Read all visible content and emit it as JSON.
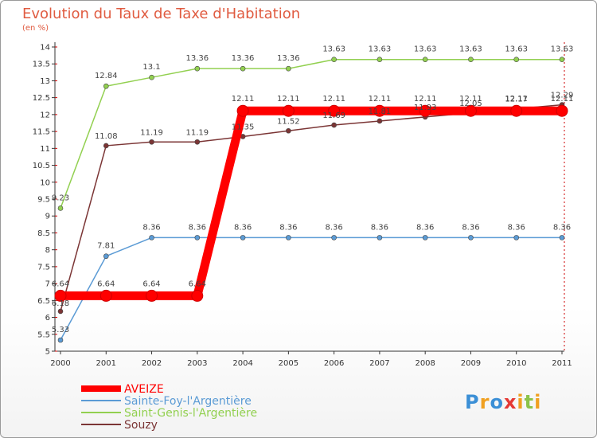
{
  "title": "Evolution du Taux de Taxe d'Habitation",
  "unit_label": "(en %)",
  "logo": {
    "text": "Proxiti",
    "letters": [
      "P",
      "r",
      "o",
      "x",
      "i",
      "t",
      "i"
    ]
  },
  "chart_data": {
    "type": "line",
    "title": "Evolution du Taux de Taxe d'Habitation",
    "ylabel": "(en %)",
    "xlabel": "",
    "ylim": [
      5,
      14
    ],
    "yticks": [
      "5",
      "5.5",
      "6",
      "6.5",
      "7",
      "7.5",
      "8",
      "8.5",
      "9",
      "9.5",
      "10",
      "10.5",
      "11",
      "11.5",
      "12",
      "12.5",
      "13",
      "13.5",
      "14"
    ],
    "categories": [
      "2000",
      "2001",
      "2002",
      "2003",
      "2004",
      "2005",
      "2006",
      "2007",
      "2008",
      "2009",
      "2010",
      "2011"
    ],
    "series": [
      {
        "name": "AVEIZE",
        "color": "#ff0000",
        "values": [
          6.64,
          6.64,
          6.64,
          6.64,
          12.11,
          12.11,
          12.11,
          12.11,
          12.11,
          12.11,
          12.11,
          12.11
        ],
        "labels": [
          "6.64",
          "6.64",
          "6.64",
          "6.64",
          "12.11",
          "12.11",
          "12.11",
          "12.11",
          "12.11",
          "12.11",
          "12.11",
          "12.11"
        ]
      },
      {
        "name": "Sainte-Foy-l'Argentière",
        "color": "#5b9bd5",
        "values": [
          5.33,
          7.81,
          8.36,
          8.36,
          8.36,
          8.36,
          8.36,
          8.36,
          8.36,
          8.36,
          8.36,
          8.36
        ],
        "labels": [
          "5.33",
          "7.81",
          "8.36",
          "8.36",
          "8.36",
          "8.36",
          "8.36",
          "8.36",
          "8.36",
          "8.36",
          "8.36",
          "8.36"
        ]
      },
      {
        "name": "Saint-Genis-l'Argentière",
        "color": "#92d050",
        "values": [
          9.23,
          12.84,
          13.1,
          13.36,
          13.36,
          13.36,
          13.63,
          13.63,
          13.63,
          13.63,
          13.63,
          13.63
        ],
        "labels": [
          "9.23",
          "12.84",
          "13.1",
          "13.36",
          "13.36",
          "13.36",
          "13.63",
          "13.63",
          "13.63",
          "13.63",
          "13.63",
          "13.63"
        ]
      },
      {
        "name": "Souzy",
        "color": "#7b3535",
        "values": [
          6.18,
          11.08,
          11.19,
          11.19,
          11.35,
          11.52,
          11.69,
          11.81,
          11.93,
          12.05,
          12.17,
          12.29
        ],
        "labels": [
          "6.18",
          "11.08",
          "11.19",
          "11.19",
          "11.35",
          "11.52",
          "11.69",
          "11.81",
          "11.93",
          "12.05",
          "12.17",
          "12.29"
        ]
      }
    ],
    "legend_position": "bottom-left",
    "grid": false
  }
}
